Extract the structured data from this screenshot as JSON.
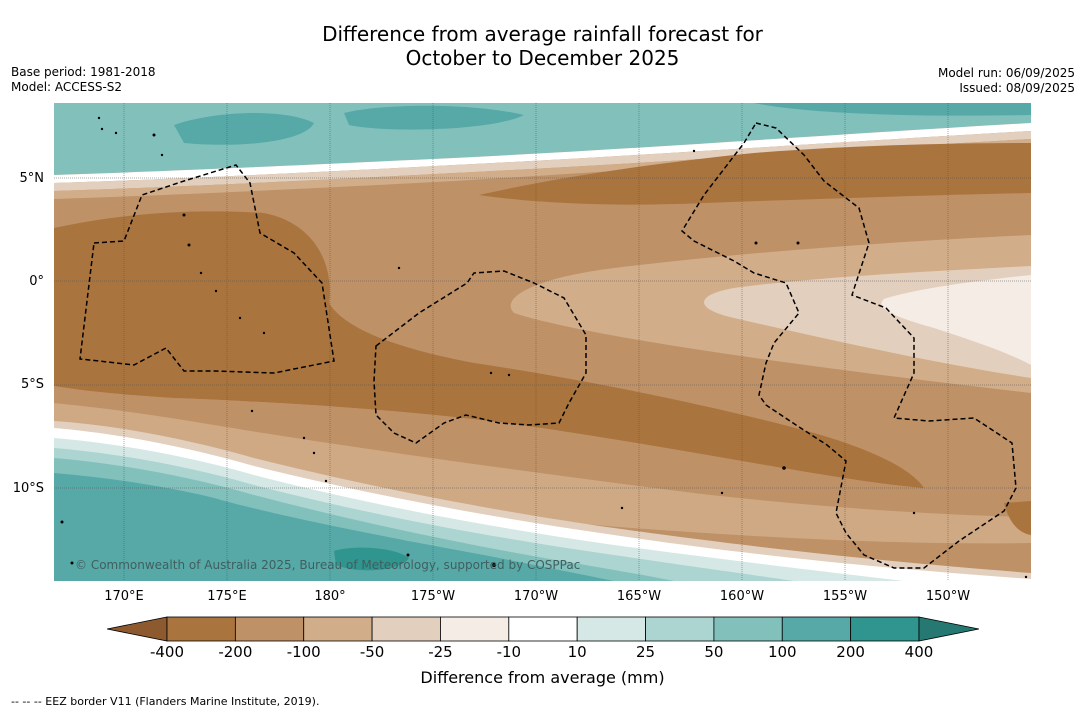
{
  "header": {
    "title_line1": "Difference from average rainfall forecast for",
    "title_line2": "October to December 2025",
    "base_period": "Base period: 1981-2018",
    "model": "Model: ACCESS-S2",
    "model_run": "Model run: 06/09/2025",
    "issued": "Issued: 08/09/2025"
  },
  "map": {
    "lat_labels": [
      "5°N",
      "0°",
      "5°S",
      "10°S"
    ],
    "lon_labels": [
      "170°E",
      "175°E",
      "180°",
      "175°W",
      "170°W",
      "165°W",
      "160°W",
      "155°W",
      "150°W"
    ],
    "copyright": "© Commonwealth of Australia 2025, Bureau of Meteorology, supported by COSPPac"
  },
  "colorbar": {
    "labels": [
      "-400",
      "-200",
      "-100",
      "-50",
      "-25",
      "-10",
      "10",
      "25",
      "50",
      "100",
      "200",
      "400"
    ],
    "colors": [
      "#8c5a2e",
      "#aa743e",
      "#be9167",
      "#d1ad8a",
      "#e3cfbd",
      "#f4ece5",
      "#ffffff",
      "#d5e8e6",
      "#acd4d1",
      "#82c0bc",
      "#57a9a8",
      "#30948f",
      "#267872"
    ],
    "title": "Difference from average (mm)"
  },
  "footnote": "--  --  -- EEZ border V11 (Flanders Marine Institute, 2019)."
}
